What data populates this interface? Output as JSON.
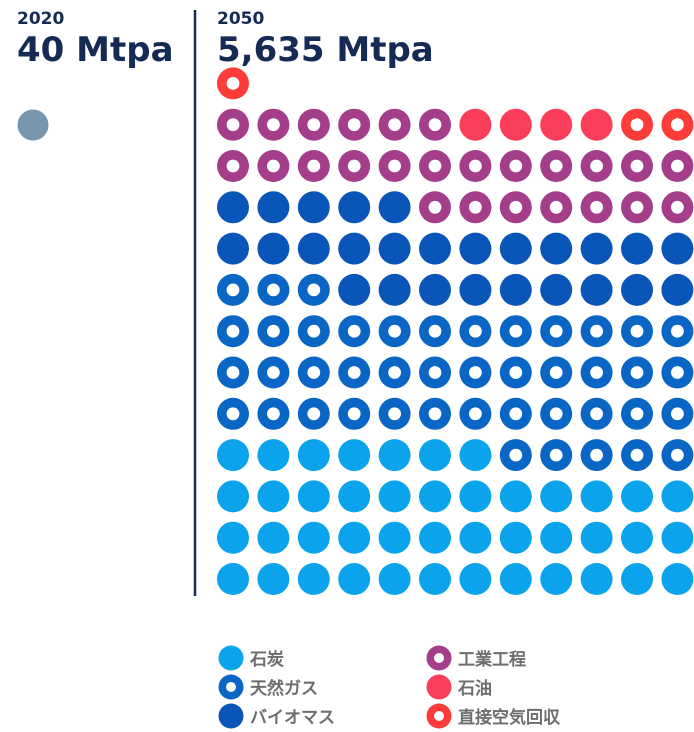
{
  "chart_data": {
    "type": "unit-dot",
    "panels": [
      {
        "year": "2020",
        "total": "40 Mtpa",
        "dots": [
          {
            "category": "2020",
            "count": 1
          }
        ]
      },
      {
        "year": "2050",
        "total": "5,635 Mtpa",
        "dots": [
          {
            "category": "石炭",
            "count": 43
          },
          {
            "category": "天然ガス",
            "count": 44
          },
          {
            "category": "バイオマス",
            "count": 26
          },
          {
            "category": "工業工程",
            "count": 25
          },
          {
            "category": "石油",
            "count": 4
          },
          {
            "category": "直接空気回収",
            "count": 3
          }
        ]
      }
    ],
    "legend": [
      {
        "label": "石炭",
        "color": "#0ba4ec",
        "style": "solid"
      },
      {
        "label": "天然ガス",
        "color": "#0a66c5",
        "style": "ring"
      },
      {
        "label": "バイオマス",
        "color": "#0a55b8",
        "style": "solid"
      },
      {
        "label": "工業工程",
        "color": "#a43d8a",
        "style": "ring"
      },
      {
        "label": "石油",
        "color": "#fb3f5a",
        "style": "solid"
      },
      {
        "label": "直接空気回収",
        "color": "#fc3c38",
        "style": "ring"
      }
    ],
    "colors": {
      "2020": "#7896ad",
      "text": "#152a55",
      "divider": "#152a55",
      "legend_text": "#6d6d6d"
    }
  }
}
